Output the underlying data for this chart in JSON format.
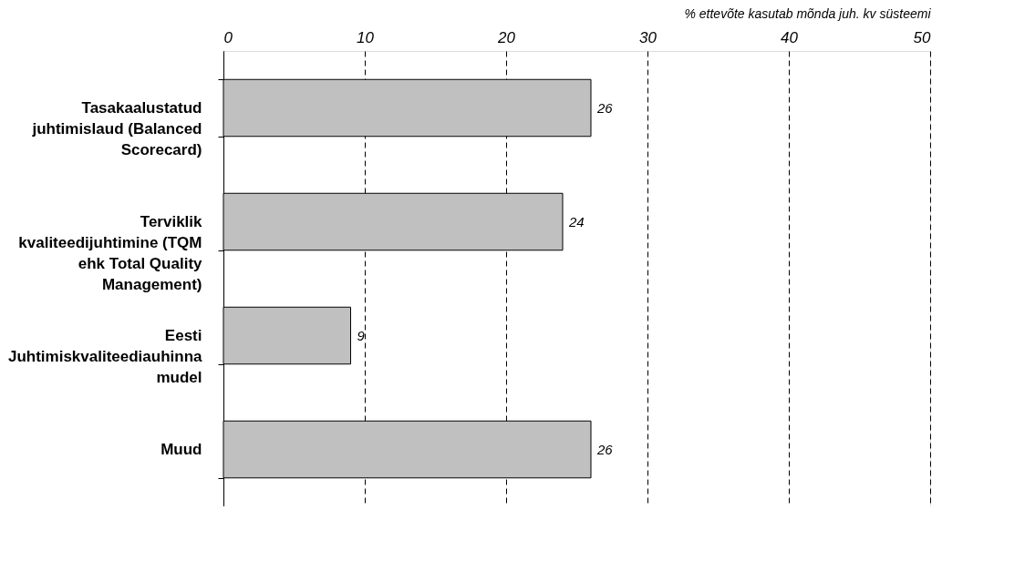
{
  "chart_data": {
    "type": "bar",
    "orientation": "horizontal",
    "xlabel": "% ettevõte kasutab mõnda juh. kv süsteemi",
    "categories": [
      "Tasakaalustatud juhtimislaud (Balanced Scorecard)",
      "Terviklik kvaliteedijuhtimine (TQM ehk Total Quality Management)",
      "Eesti Juhtimiskvaliteediauhinna mudel",
      "Muud"
    ],
    "values": [
      26,
      24,
      9,
      26
    ],
    "color": "#c0c0c0",
    "xlim": [
      0,
      50
    ],
    "xticks": [
      0,
      10,
      20,
      30,
      40,
      50
    ],
    "grid": "x",
    "data_labels": true
  }
}
